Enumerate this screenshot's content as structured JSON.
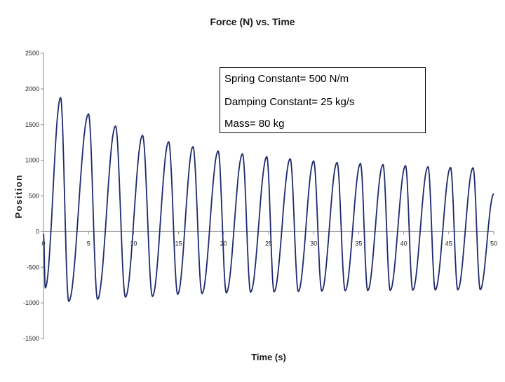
{
  "chart_data": {
    "type": "line",
    "title": "Force (N)  vs. Time",
    "xlabel": "Time (s)",
    "ylabel": "Position",
    "xlim": [
      0,
      50
    ],
    "ylim": [
      -1500,
      2500
    ],
    "x_ticks": [
      0,
      5,
      10,
      15,
      20,
      25,
      30,
      35,
      40,
      45,
      50
    ],
    "y_ticks": [
      2500,
      2000,
      1500,
      1000,
      500,
      0,
      -500,
      -1000,
      -1500
    ],
    "line_color": "#1f2a6e",
    "grid": false,
    "annotations": [
      "Spring Constant= 500 N/m",
      "Damping Constant= 25 kg/s",
      "Mass= 80 kg"
    ],
    "peaks": [
      {
        "x": 1.9,
        "y": 1880
      },
      {
        "x": 5.0,
        "y": 1650
      },
      {
        "x": 8.0,
        "y": 1480
      },
      {
        "x": 11.0,
        "y": 1350
      },
      {
        "x": 13.9,
        "y": 1260
      },
      {
        "x": 16.6,
        "y": 1190
      },
      {
        "x": 19.4,
        "y": 1130
      },
      {
        "x": 22.1,
        "y": 1090
      },
      {
        "x": 24.8,
        "y": 1050
      },
      {
        "x": 27.4,
        "y": 1020
      },
      {
        "x": 30.0,
        "y": 990
      },
      {
        "x": 32.6,
        "y": 970
      },
      {
        "x": 35.2,
        "y": 955
      },
      {
        "x": 37.7,
        "y": 940
      },
      {
        "x": 40.2,
        "y": 925
      },
      {
        "x": 42.7,
        "y": 910
      },
      {
        "x": 45.2,
        "y": 900
      },
      {
        "x": 47.7,
        "y": 895
      }
    ],
    "troughs": [
      {
        "x": 0.2,
        "y": -790
      },
      {
        "x": 2.8,
        "y": -980
      },
      {
        "x": 6.0,
        "y": -950
      },
      {
        "x": 9.1,
        "y": -920
      },
      {
        "x": 12.1,
        "y": -910
      },
      {
        "x": 14.9,
        "y": -880
      },
      {
        "x": 17.6,
        "y": -870
      },
      {
        "x": 20.3,
        "y": -860
      },
      {
        "x": 23.0,
        "y": -850
      },
      {
        "x": 25.6,
        "y": -845
      },
      {
        "x": 28.3,
        "y": -840
      },
      {
        "x": 30.9,
        "y": -835
      },
      {
        "x": 33.5,
        "y": -830
      },
      {
        "x": 36.0,
        "y": -828
      },
      {
        "x": 38.5,
        "y": -825
      },
      {
        "x": 41.0,
        "y": -822
      },
      {
        "x": 43.5,
        "y": -820
      },
      {
        "x": 46.0,
        "y": -818
      },
      {
        "x": 48.5,
        "y": -815
      }
    ],
    "end_point": {
      "x": 50,
      "y": 530
    }
  }
}
